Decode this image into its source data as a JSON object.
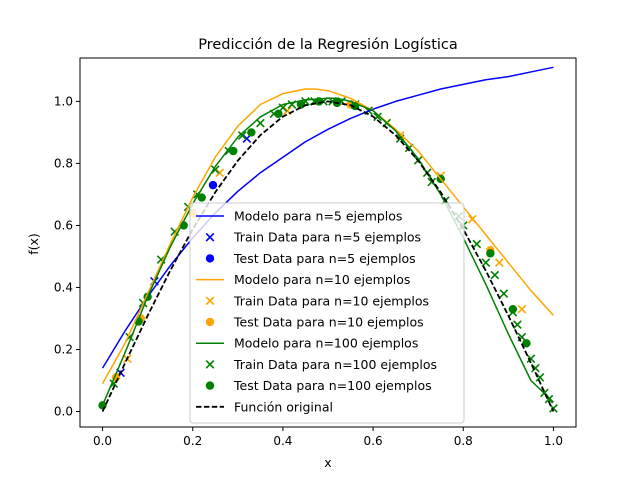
{
  "chart_data": {
    "type": "line",
    "title": "Predicción de la Regresión Logística",
    "xlabel": "x",
    "ylabel": "f(x)",
    "xlim": [
      -0.05,
      1.05
    ],
    "ylim": [
      -0.05,
      1.14
    ],
    "xticks": [
      0.0,
      0.2,
      0.4,
      0.6,
      0.8,
      1.0
    ],
    "xtick_labels": [
      "0.0",
      "0.2",
      "0.4",
      "0.6",
      "0.8",
      "1.0"
    ],
    "yticks": [
      0.0,
      0.2,
      0.4,
      0.6,
      0.8,
      1.0
    ],
    "ytick_labels": [
      "0.0",
      "0.2",
      "0.4",
      "0.6",
      "0.8",
      "1.0"
    ],
    "grid": false,
    "legend_position": "lower-center",
    "series": [
      {
        "name": "Modelo para n=5 ejemplos",
        "kind": "line",
        "color": "#0000ff",
        "x": [
          0.0,
          0.05,
          0.1,
          0.15,
          0.2,
          0.25,
          0.3,
          0.35,
          0.4,
          0.45,
          0.5,
          0.55,
          0.6,
          0.65,
          0.7,
          0.75,
          0.8,
          0.85,
          0.9,
          0.95,
          1.0
        ],
        "y": [
          0.14,
          0.26,
          0.37,
          0.47,
          0.56,
          0.64,
          0.71,
          0.77,
          0.82,
          0.87,
          0.91,
          0.945,
          0.975,
          1.0,
          1.02,
          1.04,
          1.055,
          1.07,
          1.08,
          1.095,
          1.11
        ]
      },
      {
        "name": "Train Data para n=5 ejemplos",
        "kind": "scatter",
        "marker": "x",
        "color": "#0000ff",
        "x": [
          0.04,
          0.115,
          0.32
        ],
        "y": [
          0.125,
          0.42,
          0.88
        ]
      },
      {
        "name": "Test Data para n=5 ejemplos",
        "kind": "scatter",
        "marker": "o",
        "color": "#0000ff",
        "x": [
          0.245
        ],
        "y": [
          0.73
        ]
      },
      {
        "name": "Modelo para n=10 ejemplos",
        "kind": "line",
        "color": "#ffa500",
        "x": [
          0.0,
          0.05,
          0.1,
          0.15,
          0.2,
          0.25,
          0.3,
          0.35,
          0.4,
          0.45,
          0.47,
          0.5,
          0.55,
          0.6,
          0.65,
          0.7,
          0.75,
          0.8,
          0.85,
          0.9,
          0.95,
          1.0
        ],
        "y": [
          0.09,
          0.22,
          0.38,
          0.54,
          0.69,
          0.82,
          0.92,
          0.99,
          1.025,
          1.04,
          1.04,
          1.035,
          1.01,
          0.97,
          0.91,
          0.84,
          0.75,
          0.66,
          0.57,
          0.48,
          0.39,
          0.31
        ]
      },
      {
        "name": "Train Data para n=10 ejemplos",
        "kind": "scatter",
        "marker": "x",
        "color": "#ffa500",
        "x": [
          0.055,
          0.26,
          0.41,
          0.66,
          0.75,
          0.82,
          0.88,
          0.93
        ],
        "y": [
          0.17,
          0.77,
          0.97,
          0.89,
          0.76,
          0.62,
          0.48,
          0.33
        ]
      },
      {
        "name": "Test Data para n=10 ejemplos",
        "kind": "scatter",
        "marker": "o",
        "color": "#ffa500",
        "x": [
          0.03,
          0.085,
          0.2,
          0.55,
          0.86
        ],
        "y": [
          0.11,
          0.3,
          0.64,
          0.99,
          0.52
        ]
      },
      {
        "name": "Modelo para n=100 ejemplos",
        "kind": "line",
        "color": "#008000",
        "x": [
          0.0,
          0.05,
          0.1,
          0.15,
          0.2,
          0.25,
          0.3,
          0.35,
          0.4,
          0.45,
          0.5,
          0.52,
          0.55,
          0.6,
          0.65,
          0.7,
          0.75,
          0.8,
          0.85,
          0.9,
          0.95,
          1.0
        ],
        "y": [
          0.02,
          0.19,
          0.37,
          0.53,
          0.67,
          0.79,
          0.885,
          0.95,
          0.99,
          1.005,
          1.01,
          1.01,
          1.0,
          0.97,
          0.905,
          0.815,
          0.7,
          0.56,
          0.41,
          0.25,
          0.1,
          0.03
        ]
      },
      {
        "name": "Train Data para n=100 ejemplos",
        "kind": "scatter",
        "marker": "x",
        "color": "#008000",
        "x": [
          0.025,
          0.06,
          0.09,
          0.13,
          0.16,
          0.19,
          0.21,
          0.25,
          0.28,
          0.31,
          0.35,
          0.38,
          0.4,
          0.42,
          0.45,
          0.47,
          0.49,
          0.51,
          0.53,
          0.56,
          0.59,
          0.61,
          0.63,
          0.66,
          0.68,
          0.7,
          0.72,
          0.73,
          0.76,
          0.79,
          0.8,
          0.83,
          0.85,
          0.87,
          0.89,
          0.91,
          0.92,
          0.93,
          0.95,
          0.96,
          0.97,
          0.98,
          0.99,
          1.0
        ],
        "y": [
          0.09,
          0.24,
          0.35,
          0.49,
          0.58,
          0.66,
          0.7,
          0.78,
          0.84,
          0.89,
          0.93,
          0.96,
          0.98,
          0.99,
          1.0,
          1.0,
          1.0,
          1.0,
          1.0,
          0.99,
          0.97,
          0.95,
          0.93,
          0.88,
          0.85,
          0.81,
          0.77,
          0.74,
          0.68,
          0.63,
          0.6,
          0.54,
          0.48,
          0.44,
          0.38,
          0.32,
          0.28,
          0.24,
          0.17,
          0.14,
          0.11,
          0.06,
          0.04,
          0.01
        ]
      },
      {
        "name": "Test Data para n=100 ejemplos",
        "kind": "scatter",
        "marker": "o",
        "color": "#008000",
        "x": [
          0.0,
          0.08,
          0.1,
          0.18,
          0.22,
          0.29,
          0.33,
          0.39,
          0.44,
          0.48,
          0.52,
          0.56,
          0.75,
          0.86,
          0.91,
          0.94
        ],
        "y": [
          0.02,
          0.29,
          0.37,
          0.6,
          0.69,
          0.84,
          0.9,
          0.96,
          0.99,
          1.0,
          0.995,
          0.985,
          0.75,
          0.51,
          0.33,
          0.22
        ]
      },
      {
        "name": "Función original",
        "kind": "line",
        "color": "#000000",
        "dash": true,
        "x": [
          0.0,
          0.05,
          0.1,
          0.15,
          0.2,
          0.25,
          0.3,
          0.35,
          0.4,
          0.45,
          0.5,
          0.55,
          0.6,
          0.65,
          0.7,
          0.75,
          0.8,
          0.85,
          0.9,
          0.95,
          1.0
        ],
        "y": [
          0.0,
          0.1564,
          0.309,
          0.454,
          0.5878,
          0.7071,
          0.809,
          0.891,
          0.9511,
          0.9877,
          1.0,
          0.9877,
          0.9511,
          0.891,
          0.809,
          0.7071,
          0.5878,
          0.454,
          0.309,
          0.1564,
          0.0
        ]
      }
    ]
  }
}
